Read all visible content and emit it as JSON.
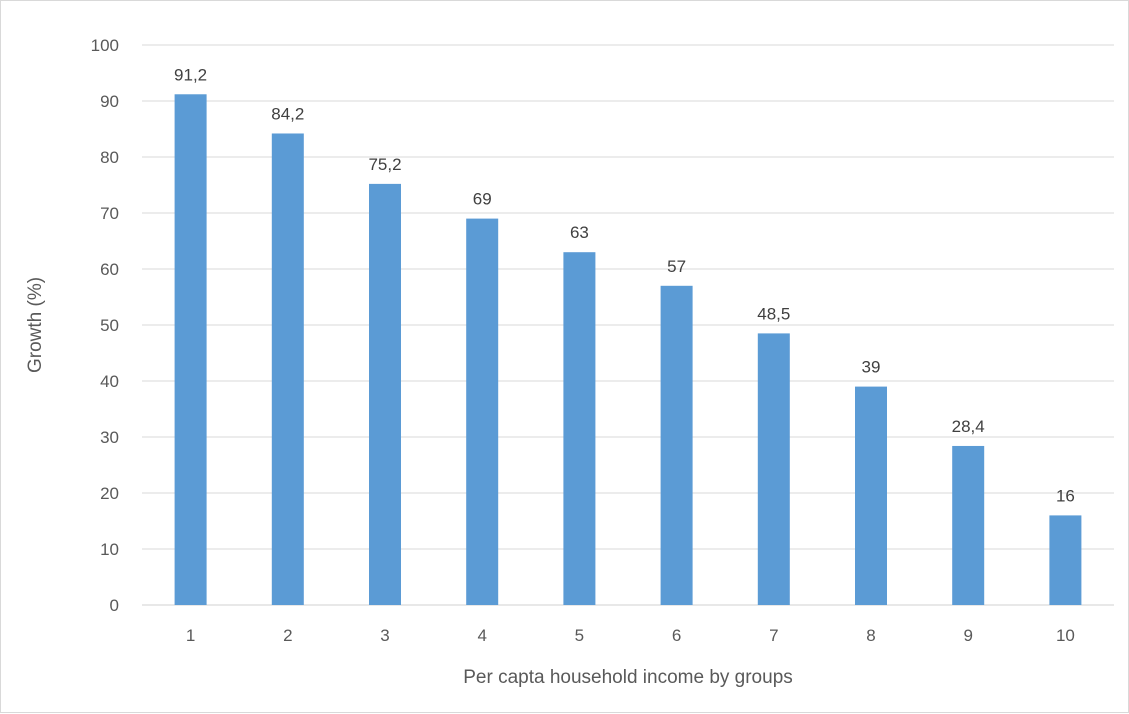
{
  "chart_data": {
    "type": "bar",
    "title": "",
    "xlabel": "Per capta household income by groups",
    "ylabel": "Growth (%)",
    "categories": [
      "1",
      "2",
      "3",
      "4",
      "5",
      "6",
      "7",
      "8",
      "9",
      "10"
    ],
    "values": [
      91.2,
      84.2,
      75.2,
      69,
      63,
      57,
      48.5,
      39,
      28.4,
      16
    ],
    "value_labels": [
      "91,2",
      "84,2",
      "75,2",
      "69",
      "63",
      "57",
      "48,5",
      "39",
      "28,4",
      "16"
    ],
    "y_ticks": [
      "0",
      "10",
      "20",
      "30",
      "40",
      "50",
      "60",
      "70",
      "80",
      "90",
      "100"
    ],
    "ylim": [
      0,
      100
    ],
    "grid": true,
    "legend": "none",
    "colors": {
      "bar": "#5b9bd5",
      "grid": "#d9d9d9",
      "axis_text": "#595959",
      "label_text": "#404040"
    }
  }
}
